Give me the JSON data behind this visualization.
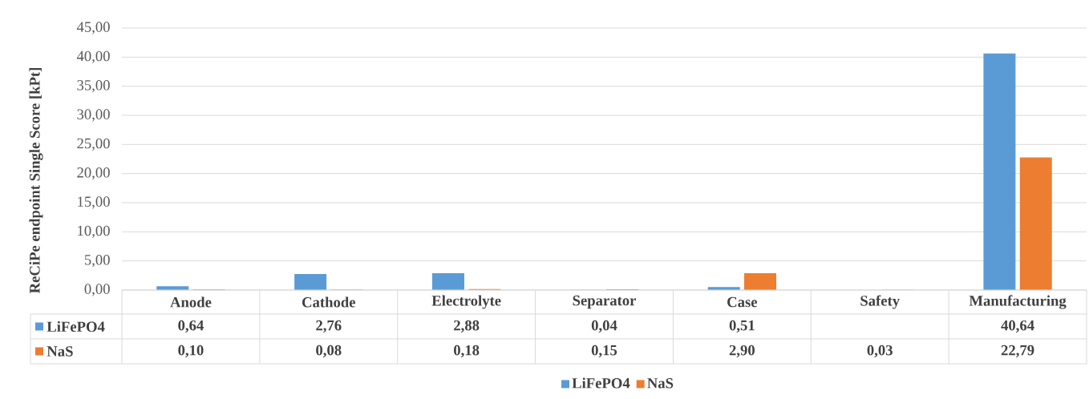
{
  "chart_data": {
    "type": "bar",
    "ylabel": "ReCiPe endpoint Single Score [kPt]",
    "categories": [
      "Anode",
      "Cathode",
      "Electrolyte",
      "Separator",
      "Case",
      "Safety",
      "Manufacturing"
    ],
    "series": [
      {
        "name": "LiFePO4",
        "color": "#5b9bd5",
        "values": [
          0.64,
          2.76,
          2.88,
          0.04,
          0.51,
          null,
          40.64
        ],
        "value_labels": [
          "0,64",
          "2,76",
          "2,88",
          "0,04",
          "0,51",
          null,
          "40,64"
        ]
      },
      {
        "name": "NaS",
        "color": "#ed7d31",
        "values": [
          0.1,
          0.08,
          0.18,
          0.15,
          2.9,
          0.03,
          22.79
        ],
        "value_labels": [
          "0,10",
          "0,08",
          "0,18",
          "0,15",
          "2,90",
          "0,03",
          "22,79"
        ]
      }
    ],
    "ylim": [
      0,
      45
    ],
    "yticks": [
      {
        "value": 0,
        "label": "0,00"
      },
      {
        "value": 5,
        "label": "5,00"
      },
      {
        "value": 10,
        "label": "10,00"
      },
      {
        "value": 15,
        "label": "15,00"
      },
      {
        "value": 20,
        "label": "20,00"
      },
      {
        "value": 25,
        "label": "25,00"
      },
      {
        "value": 30,
        "label": "30,00"
      },
      {
        "value": 35,
        "label": "35,00"
      },
      {
        "value": 40,
        "label": "40,00"
      },
      {
        "value": 45,
        "label": "45,00"
      }
    ],
    "grid": "y",
    "legend": "bottom"
  }
}
